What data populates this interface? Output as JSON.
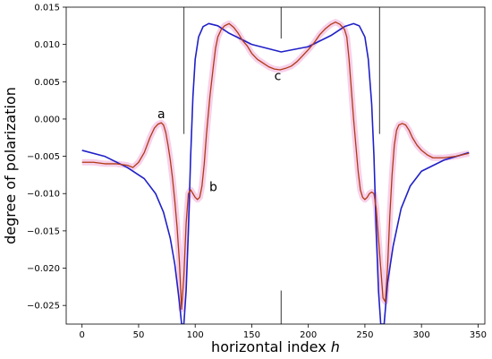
{
  "chart_data": {
    "type": "line",
    "title": "",
    "xlabel": "horizontal index ",
    "xlabel_var": "h",
    "ylabel": "degree of polarization",
    "xlim": [
      -14,
      356
    ],
    "ylim": [
      -0.0275,
      0.015
    ],
    "xticks": [
      0,
      50,
      100,
      150,
      200,
      250,
      300,
      350
    ],
    "yticks": [
      -0.025,
      -0.02,
      -0.015,
      -0.01,
      -0.005,
      0.0,
      0.005,
      0.01,
      0.015
    ],
    "xtick_labels": [
      "0",
      "50",
      "100",
      "150",
      "200",
      "250",
      "300",
      "350"
    ],
    "ytick_labels": [
      "−0.025",
      "−0.020",
      "−0.015",
      "−0.010",
      "−0.005",
      "0.000",
      "0.005",
      "0.010",
      "0.015"
    ],
    "grid": false,
    "legend": "none",
    "vertical_lines": [
      {
        "x": 90,
        "y0": -0.002,
        "y1": 0.015
      },
      {
        "x": 176,
        "y0": 0.0108,
        "y1": 0.015
      },
      {
        "x": 176,
        "y0": -0.0275,
        "y1": -0.023
      },
      {
        "x": 263,
        "y0": -0.002,
        "y1": 0.015
      }
    ],
    "annotations": [
      {
        "text": "a",
        "x": 70,
        "y": 0.0001
      },
      {
        "text": "b",
        "x": 116,
        "y": -0.0097
      },
      {
        "text": "c",
        "x": 173,
        "y": 0.0052
      }
    ],
    "series": [
      {
        "color": "#2020c8",
        "x": [
          0,
          20,
          40,
          55,
          65,
          72,
          78,
          82,
          86,
          88,
          90,
          92,
          94,
          96,
          98,
          100,
          103,
          107,
          112,
          120,
          130,
          150,
          176,
          200,
          220,
          232,
          240,
          245,
          250,
          253,
          256,
          258,
          260,
          262,
          264,
          267,
          270,
          275,
          282,
          290,
          300,
          320,
          342
        ],
        "y": [
          -0.0042,
          -0.005,
          -0.0065,
          -0.008,
          -0.01,
          -0.0125,
          -0.016,
          -0.0195,
          -0.0245,
          -0.0275,
          -0.0275,
          -0.023,
          -0.015,
          -0.005,
          0.003,
          0.008,
          0.011,
          0.0124,
          0.0128,
          0.0125,
          0.0115,
          0.01,
          0.009,
          0.0097,
          0.0112,
          0.0124,
          0.0128,
          0.0125,
          0.011,
          0.008,
          0.002,
          -0.005,
          -0.015,
          -0.023,
          -0.0275,
          -0.0275,
          -0.022,
          -0.017,
          -0.012,
          -0.009,
          -0.007,
          -0.0055,
          -0.0045
        ]
      },
      {
        "color": "#b03a14",
        "x": [
          0,
          10,
          20,
          30,
          40,
          45,
          50,
          55,
          60,
          64,
          67,
          70,
          72,
          74,
          76,
          78,
          80,
          82,
          84,
          86,
          88,
          90,
          92,
          94,
          96,
          98,
          100,
          102,
          104,
          106,
          108,
          110,
          113,
          116,
          118,
          120,
          123,
          126,
          130,
          134,
          138,
          142,
          146,
          150,
          155,
          160,
          165,
          170,
          175,
          180,
          185,
          190,
          195,
          200,
          205,
          210,
          215,
          220,
          224,
          228,
          232,
          234,
          236,
          238,
          240,
          242,
          244,
          246,
          248,
          250,
          252,
          254,
          256,
          258,
          260,
          262,
          264,
          266,
          268,
          270,
          272,
          274,
          276,
          278,
          280,
          283,
          286,
          289,
          292,
          296,
          300,
          305,
          310,
          320,
          330,
          342
        ],
        "y": [
          -0.0058,
          -0.0058,
          -0.006,
          -0.006,
          -0.0062,
          -0.0065,
          -0.0058,
          -0.0045,
          -0.0025,
          -0.0012,
          -0.0007,
          -0.0005,
          -0.0008,
          -0.0018,
          -0.0035,
          -0.0055,
          -0.008,
          -0.011,
          -0.0145,
          -0.019,
          -0.0255,
          -0.021,
          -0.014,
          -0.01,
          -0.0095,
          -0.01,
          -0.0105,
          -0.0108,
          -0.0105,
          -0.009,
          -0.006,
          -0.002,
          0.003,
          0.007,
          0.0095,
          0.011,
          0.012,
          0.0125,
          0.0128,
          0.0123,
          0.0115,
          0.0105,
          0.0098,
          0.0088,
          0.008,
          0.0075,
          0.007,
          0.0067,
          0.0066,
          0.0068,
          0.0071,
          0.0077,
          0.0085,
          0.0093,
          0.0102,
          0.0113,
          0.0121,
          0.0127,
          0.013,
          0.0127,
          0.012,
          0.011,
          0.008,
          0.004,
          0.0,
          -0.0035,
          -0.007,
          -0.0095,
          -0.0105,
          -0.0108,
          -0.0105,
          -0.01,
          -0.0098,
          -0.01,
          -0.012,
          -0.016,
          -0.02,
          -0.024,
          -0.0245,
          -0.02,
          -0.013,
          -0.0075,
          -0.0035,
          -0.0015,
          -0.0008,
          -0.0006,
          -0.0008,
          -0.0015,
          -0.0025,
          -0.0035,
          -0.0042,
          -0.0048,
          -0.0052,
          -0.0052,
          -0.005,
          -0.0046
        ]
      }
    ]
  }
}
